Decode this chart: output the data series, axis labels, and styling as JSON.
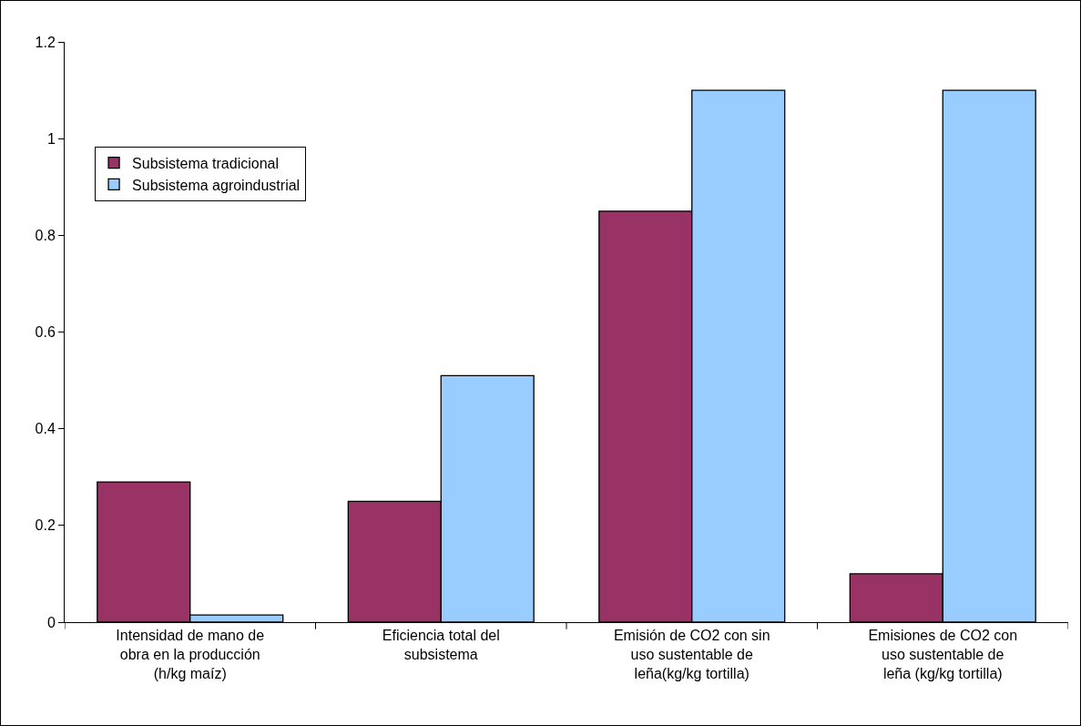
{
  "chart_data": {
    "type": "bar",
    "categories": [
      "Intensidad de mano de obra en la producción (h/kg maíz)",
      "Eficiencia total del subsistema",
      "Emisión de CO2 con sin uso sustentable de leña(kg/kg tortilla)",
      "Emisiones de CO2 con uso sustentable de leña (kg/kg tortilla)"
    ],
    "series": [
      {
        "name": "Subsistema tradicional",
        "color": "#993366",
        "values": [
          0.29,
          0.25,
          0.85,
          0.1
        ]
      },
      {
        "name": "Subsistema agroindustrial",
        "color": "#99ccff",
        "values": [
          0.015,
          0.51,
          1.1,
          1.1
        ]
      }
    ],
    "ylim": [
      0,
      1.2
    ],
    "yticks": [
      0,
      0.2,
      0.4,
      0.6,
      0.8,
      1,
      1.2
    ],
    "grid": false,
    "legend": "top left"
  }
}
